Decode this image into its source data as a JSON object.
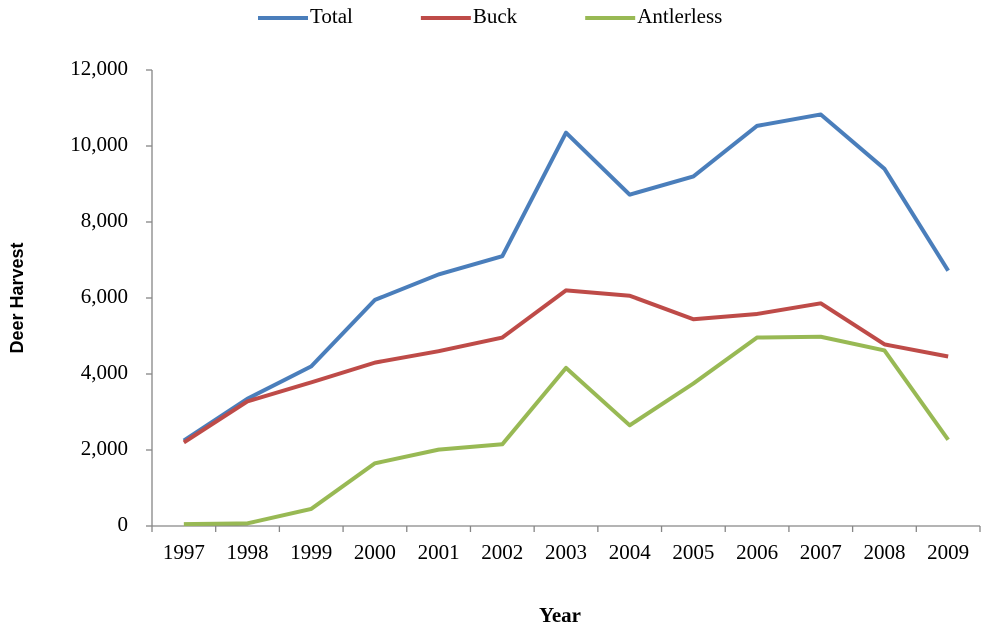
{
  "chart_data": {
    "type": "line",
    "y_label": "Deer Harvest",
    "x_label": "Year",
    "categories": [
      "1997",
      "1998",
      "1999",
      "2000",
      "2001",
      "2002",
      "2003",
      "2004",
      "2005",
      "2006",
      "2007",
      "2008",
      "2009"
    ],
    "series": [
      {
        "name": "Total",
        "color": "#4a7ebb",
        "values": [
          2250,
          3350,
          4200,
          5950,
          6620,
          7100,
          10350,
          8720,
          9200,
          10530,
          10830,
          9400,
          6720
        ]
      },
      {
        "name": "Buck",
        "color": "#be4b48",
        "values": [
          2200,
          3280,
          3780,
          4300,
          4600,
          4960,
          6200,
          6060,
          5440,
          5580,
          5860,
          4780,
          4460
        ]
      },
      {
        "name": "Antlerless",
        "color": "#98b954",
        "values": [
          50,
          70,
          450,
          1650,
          2010,
          2150,
          4160,
          2650,
          3750,
          4960,
          4980,
          4620,
          2270
        ]
      }
    ],
    "ylim": [
      0,
      12000
    ],
    "yticks": [
      0,
      {
        "value": 2000,
        "label": "2,000"
      },
      {
        "value": 4000,
        "label": "4,000"
      },
      {
        "value": 6000,
        "label": "6,000"
      },
      {
        "value": 8000,
        "label": "8,000"
      },
      {
        "value": 10000,
        "label": "10,000"
      },
      {
        "value": 12000,
        "label": "12,000"
      }
    ],
    "legend": "top",
    "grid": false
  }
}
